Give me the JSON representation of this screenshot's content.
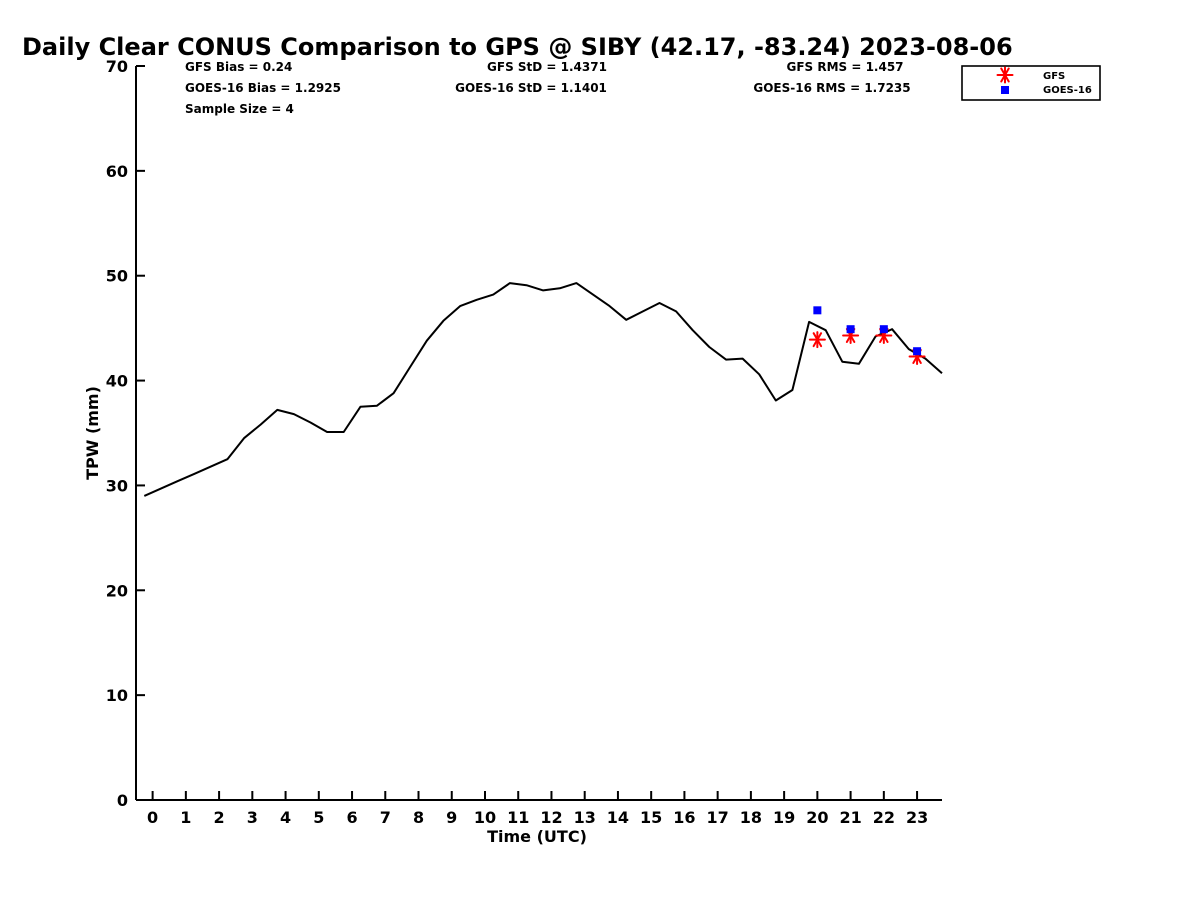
{
  "chart_data": {
    "type": "line",
    "title": "Daily Clear CONUS Comparison to GPS @ SIBY (42.17, -83.24) 2023-08-06",
    "xlabel": "Time (UTC)",
    "ylabel": "TPW (mm)",
    "xlim": [
      -0.5,
      23.75
    ],
    "ylim": [
      0,
      70
    ],
    "x_ticks": [
      "0",
      "1",
      "2",
      "3",
      "4",
      "5",
      "6",
      "7",
      "8",
      "9",
      "10",
      "11",
      "12",
      "13",
      "14",
      "15",
      "16",
      "17",
      "18",
      "19",
      "20",
      "21",
      "22",
      "23"
    ],
    "y_ticks": [
      "0",
      "10",
      "20",
      "30",
      "40",
      "50",
      "60",
      "70"
    ],
    "grid": false,
    "legend_position": "top-right",
    "stats": {
      "gfs_bias": "GFS Bias = 0.24",
      "goes_bias": "GOES-16 Bias = 1.2925",
      "sample_size": "Sample Size = 4",
      "gfs_std": "GFS StD = 1.4371",
      "goes_std": "GOES-16 StD = 1.1401",
      "gfs_rms": "GFS RMS = 1.457",
      "goes_rms": "GOES-16 RMS = 1.7235"
    },
    "series": [
      {
        "role": "gps",
        "color": "#000000",
        "style": "line",
        "x": [
          -0.25,
          0.25,
          0.75,
          1.25,
          1.75,
          2.25,
          2.75,
          3.25,
          3.75,
          4.25,
          4.75,
          5.25,
          5.75,
          6.25,
          6.75,
          7.25,
          7.75,
          8.25,
          8.75,
          9.25,
          9.75,
          10.25,
          10.75,
          11.25,
          11.75,
          12.25,
          12.75,
          13.25,
          13.75,
          14.25,
          14.75,
          15.25,
          15.75,
          16.25,
          16.75,
          17.25,
          17.75,
          18.25,
          18.75,
          19.25,
          19.75,
          20.25,
          20.75,
          21.25,
          21.75,
          22.25,
          22.75,
          23.25,
          23.75
        ],
        "y": [
          29.0,
          29.7,
          30.4,
          31.1,
          31.8,
          32.5,
          34.5,
          35.8,
          37.2,
          36.8,
          36.0,
          35.1,
          35.1,
          37.5,
          37.6,
          38.8,
          41.3,
          43.8,
          45.7,
          47.1,
          47.7,
          48.2,
          49.3,
          49.1,
          48.6,
          48.8,
          49.3,
          48.2,
          47.1,
          45.8,
          46.6,
          47.4,
          46.6,
          44.8,
          43.2,
          42.0,
          42.1,
          40.6,
          38.1,
          39.1,
          45.6,
          44.8,
          41.8,
          41.6,
          44.2,
          44.9,
          43.0,
          42.1,
          40.7
        ]
      },
      {
        "name": "GFS",
        "color": "#ff0000",
        "style": "asterisk",
        "x": [
          20,
          21,
          22,
          23
        ],
        "y": [
          43.9,
          44.3,
          44.3,
          42.3
        ]
      },
      {
        "name": "GOES-16",
        "color": "#0000ff",
        "style": "square",
        "x": [
          20,
          21,
          22,
          23
        ],
        "y": [
          46.7,
          44.9,
          44.9,
          42.8
        ]
      }
    ]
  }
}
